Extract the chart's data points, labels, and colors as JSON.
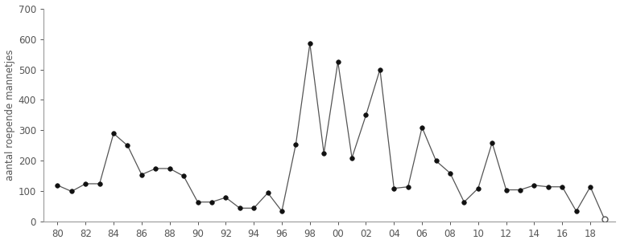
{
  "years": [
    1980,
    1981,
    1982,
    1983,
    1984,
    1985,
    1986,
    1987,
    1988,
    1989,
    1990,
    1991,
    1992,
    1993,
    1994,
    1995,
    1996,
    1997,
    1998,
    1999,
    2000,
    2001,
    2002,
    2003,
    2004,
    2005,
    2006,
    2007,
    2008,
    2009,
    2010,
    2011,
    2012,
    2013,
    2014,
    2015,
    2016,
    2017,
    2018,
    2019
  ],
  "values": [
    120,
    100,
    125,
    125,
    290,
    250,
    155,
    175,
    175,
    150,
    65,
    65,
    80,
    45,
    45,
    95,
    35,
    255,
    585,
    225,
    525,
    210,
    350,
    500,
    110,
    115,
    310,
    200,
    160,
    65,
    110,
    260,
    105,
    105,
    120,
    115,
    115,
    35,
    115,
    10
  ],
  "open_circle_last": true,
  "line_color": "#555555",
  "marker_color": "#111111",
  "open_marker_color": "#555555",
  "ylabel": "aantal roepende mannetjes",
  "ylim": [
    0,
    700
  ],
  "yticks": [
    0,
    100,
    200,
    300,
    400,
    500,
    600,
    700
  ],
  "xlim": [
    1979.0,
    2019.8
  ],
  "xtick_labels": [
    "80",
    "82",
    "84",
    "86",
    "88",
    "90",
    "92",
    "94",
    "96",
    "98",
    "00",
    "02",
    "04",
    "06",
    "08",
    "10",
    "12",
    "14",
    "16",
    "18"
  ],
  "xtick_positions": [
    1980,
    1982,
    1984,
    1986,
    1988,
    1990,
    1992,
    1994,
    1996,
    1998,
    2000,
    2002,
    2004,
    2006,
    2008,
    2010,
    2012,
    2014,
    2016,
    2018
  ],
  "figsize": [
    7.7,
    3.04
  ],
  "dpi": 100,
  "background_color": "#ffffff",
  "spine_color": "#999999",
  "text_color": "#555555",
  "label_fontsize": 8.5,
  "tick_fontsize": 8.5
}
